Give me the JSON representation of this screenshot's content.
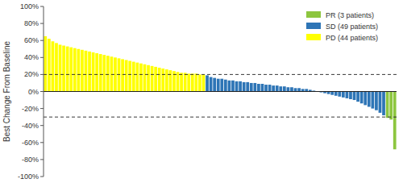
{
  "chart_data": {
    "type": "bar",
    "y_label": "Best Change From Baseline",
    "categories": [
      null,
      null,
      null,
      null,
      null,
      null,
      null,
      null,
      null,
      null,
      null,
      null,
      null,
      null,
      null,
      null,
      null,
      null,
      null,
      null,
      null,
      null,
      null,
      null,
      null,
      null,
      null,
      null,
      null,
      null,
      null,
      null,
      null,
      null,
      null,
      null,
      null,
      null,
      null,
      null,
      null,
      null,
      null,
      null,
      null,
      null,
      null,
      null,
      null,
      null,
      null,
      null,
      null,
      null,
      null,
      null,
      null,
      null,
      null,
      null,
      null,
      null,
      null,
      null,
      null,
      null,
      null,
      null,
      null,
      null,
      null,
      null,
      null,
      null,
      null,
      null,
      null,
      null,
      null,
      null,
      null,
      null,
      null,
      null,
      null,
      null,
      null,
      null,
      null,
      null,
      null,
      null,
      null,
      null,
      null,
      null
    ],
    "series": [
      {
        "name": "PD (44 patients)",
        "color": "#FFFF00",
        "values": [
          65,
          62,
          59,
          57,
          55,
          54,
          53,
          52,
          51,
          50,
          49,
          48,
          47,
          46,
          45,
          44,
          43,
          42,
          41,
          40,
          39,
          38,
          37,
          36,
          35,
          34,
          33,
          32,
          31,
          30,
          29,
          28,
          27,
          26,
          25,
          24,
          23,
          22,
          22,
          21,
          21,
          21,
          20,
          20,
          null,
          null,
          null,
          null,
          null,
          null,
          null,
          null,
          null,
          null,
          null,
          null,
          null,
          null,
          null,
          null,
          null,
          null,
          null,
          null,
          null,
          null,
          null,
          null,
          null,
          null,
          null,
          null,
          null,
          null,
          null,
          null,
          null,
          null,
          null,
          null,
          null,
          null,
          null,
          null,
          null,
          null,
          null,
          null,
          null,
          null,
          null,
          null,
          null,
          null,
          null,
          null
        ]
      },
      {
        "name": "SD (49 patients)",
        "color": "#2E75B6",
        "values": [
          null,
          null,
          null,
          null,
          null,
          null,
          null,
          null,
          null,
          null,
          null,
          null,
          null,
          null,
          null,
          null,
          null,
          null,
          null,
          null,
          null,
          null,
          null,
          null,
          null,
          null,
          null,
          null,
          null,
          null,
          null,
          null,
          null,
          null,
          null,
          null,
          null,
          null,
          null,
          null,
          null,
          null,
          null,
          null,
          19,
          17,
          16,
          15,
          15,
          14,
          13,
          13,
          12,
          12,
          11,
          11,
          10,
          10,
          9,
          9,
          8,
          8,
          7,
          7,
          6,
          6,
          5,
          5,
          4,
          4,
          3,
          3,
          2,
          1,
          0,
          -1,
          -2,
          -3,
          -4,
          -5,
          -6,
          -7,
          -8,
          -9,
          -10,
          -12,
          -14,
          -16,
          -18,
          -20,
          -22,
          -25,
          -28,
          null,
          null,
          null
        ]
      },
      {
        "name": "PR (3 patients)",
        "color": "#8DC63F",
        "values": [
          null,
          null,
          null,
          null,
          null,
          null,
          null,
          null,
          null,
          null,
          null,
          null,
          null,
          null,
          null,
          null,
          null,
          null,
          null,
          null,
          null,
          null,
          null,
          null,
          null,
          null,
          null,
          null,
          null,
          null,
          null,
          null,
          null,
          null,
          null,
          null,
          null,
          null,
          null,
          null,
          null,
          null,
          null,
          null,
          null,
          null,
          null,
          null,
          null,
          null,
          null,
          null,
          null,
          null,
          null,
          null,
          null,
          null,
          null,
          null,
          null,
          null,
          null,
          null,
          null,
          null,
          null,
          null,
          null,
          null,
          null,
          null,
          null,
          null,
          null,
          null,
          null,
          null,
          null,
          null,
          null,
          null,
          null,
          null,
          null,
          null,
          null,
          null,
          null,
          null,
          null,
          null,
          null,
          -31,
          -33,
          -68
        ]
      }
    ],
    "reference_lines": [
      {
        "value": 0,
        "line_style": "solid"
      },
      {
        "value": 20,
        "line_style": "dashed"
      },
      {
        "value": -30,
        "line_style": "dashed"
      }
    ],
    "ylim": [
      -100,
      100
    ],
    "yticks": [
      {
        "value": -100,
        "label": "-100%"
      },
      {
        "value": -80,
        "label": "-80%"
      },
      {
        "value": -60,
        "label": "-60%"
      },
      {
        "value": -40,
        "label": "-40%"
      },
      {
        "value": -20,
        "label": "-20%"
      },
      {
        "value": 0,
        "label": "0%"
      },
      {
        "value": 20,
        "label": "20%"
      },
      {
        "value": 40,
        "label": "40%"
      },
      {
        "value": 60,
        "label": "60%"
      },
      {
        "value": 80,
        "label": "80%"
      },
      {
        "value": 100,
        "label": "100%"
      }
    ],
    "grid": false,
    "legend": "upper right"
  }
}
